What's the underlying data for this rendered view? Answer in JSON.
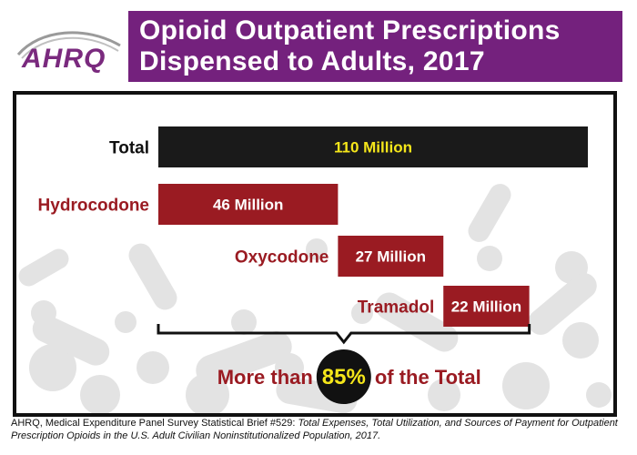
{
  "header": {
    "logo_text": "AHRQ",
    "title_line1": "Opioid Outpatient Prescriptions",
    "title_line2": "Dispensed to Adults, 2017"
  },
  "chart_data": {
    "type": "bar",
    "orientation": "horizontal",
    "layout": "waterfall",
    "title": "Opioid Outpatient Prescriptions Dispensed to Adults, 2017",
    "categories": [
      "Total",
      "Hydrocodone",
      "Oxycodone",
      "Tramadol"
    ],
    "values": [
      110,
      46,
      27,
      22
    ],
    "data_labels": [
      "110 Million",
      "46 Million",
      "27 Million",
      "22 Million"
    ],
    "colors": [
      "#1a1a1a",
      "#9a1b22",
      "#9a1b22",
      "#9a1b22"
    ],
    "label_colors": [
      "#111111",
      "#9a1b22",
      "#9a1b22",
      "#9a1b22"
    ],
    "value_label_colors": [
      "#f5e61a",
      "#ffffff",
      "#ffffff",
      "#ffffff"
    ],
    "xlim": [
      0,
      110
    ],
    "grid": false,
    "legend": "none",
    "annotation": {
      "prefix": "More than ",
      "highlight": "85%",
      "suffix": " of the Total"
    }
  },
  "caption": {
    "source": "AHRQ, Medical Expenditure Panel Survey Statistical Brief #529: ",
    "title_italic": "Total Expenses, Total Utilization, and Sources of Payment for Outpatient Prescription Opioids in the U.S. Adult Civilian Noninstitutionalized Population, 2017."
  },
  "colors": {
    "title_bg": "#74217d",
    "accent_red": "#9a1b22",
    "highlight_yellow": "#f5e61a",
    "background_pills": "#e3e3e3"
  }
}
